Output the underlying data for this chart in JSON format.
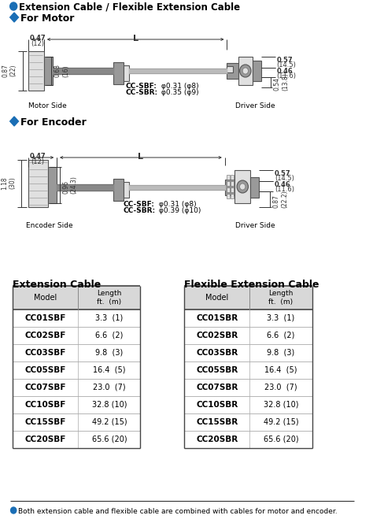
{
  "title": "Extension Cable / Flexible Extension Cable",
  "motor_section_title": "For Motor",
  "encoder_section_title": "For Encoder",
  "bg_color": "#ffffff",
  "blue_bullet_color": "#1a6eb5",
  "red_bullet_color": "#cc2200",
  "motor_dims": {
    "width_label": "0.47",
    "width_sub": "(12)",
    "h1_label": "0.87",
    "h1_sub": "(22)",
    "h2_label": "0.63",
    "h2_sub": "(16)",
    "rw1_label": "0.57",
    "rw1_sub": "(14.5)",
    "rw2_label": "0.46",
    "rw2_sub": "(11.6)",
    "rh_label": "0.54",
    "rh_sub": "(13.8)",
    "L_label": "L",
    "sbf_label": "CC-SBF",
    "sbf_dim": "φ0.31 (φ8)",
    "sbr_label": "CC-SBR",
    "sbr_dim": "φ0.35 (φ9)",
    "motor_side": "Motor Side",
    "driver_side": "Driver Side"
  },
  "encoder_dims": {
    "width_label": "0.47",
    "width_sub": "(12)",
    "h1_label": "1.18",
    "h1_sub": "(30)",
    "h2_label": "0.96",
    "h2_sub": "(24.3)",
    "rw1_label": "0.57",
    "rw1_sub": "(14.5)",
    "rw2_label": "0.46",
    "rw2_sub": "(11.6)",
    "rh_label": "0.87",
    "rh_sub": "(22.2)",
    "L_label": "L",
    "sbf_label": "CC-SBF",
    "sbf_dim": "φ0.31 (φ8)",
    "sbr_label": "CC-SBR",
    "sbr_dim": "φ0.39 (φ10)",
    "encoder_side": "Encoder Side",
    "driver_side": "Driver Side"
  },
  "ext_cable_title": "Extension Cable",
  "flex_cable_title": "Flexible Extension Cable",
  "ext_models": [
    "CC01SBF",
    "CC02SBF",
    "CC03SBF",
    "CC05SBF",
    "CC07SBF",
    "CC10SBF",
    "CC15SBF",
    "CC20SBF"
  ],
  "ext_lengths": [
    "3.3  (1)",
    "6.6  (2)",
    "9.8  (3)",
    "16.4  (5)",
    "23.0  (7)",
    "32.8 (10)",
    "49.2 (15)",
    "65.6 (20)"
  ],
  "flex_models": [
    "CC01SBR",
    "CC02SBR",
    "CC03SBR",
    "CC05SBR",
    "CC07SBR",
    "CC10SBR",
    "CC15SBR",
    "CC20SBR"
  ],
  "flex_lengths": [
    "3.3  (1)",
    "6.6  (2)",
    "9.8  (3)",
    "16.4  (5)",
    "23.0  (7)",
    "32.8 (10)",
    "49.2 (15)",
    "65.6 (20)"
  ],
  "footnote": "Both extension cable and flexible cable are combined with cables for motor and encoder.",
  "header_bg": "#d8d8d8",
  "row_bg": "#ffffff",
  "dim_color": "#333333",
  "cable_color_dark": "#888888",
  "cable_color_light": "#bbbbbb",
  "connector_face": "#cccccc",
  "connector_dark": "#999999",
  "connector_shade": "#e0e0e0"
}
